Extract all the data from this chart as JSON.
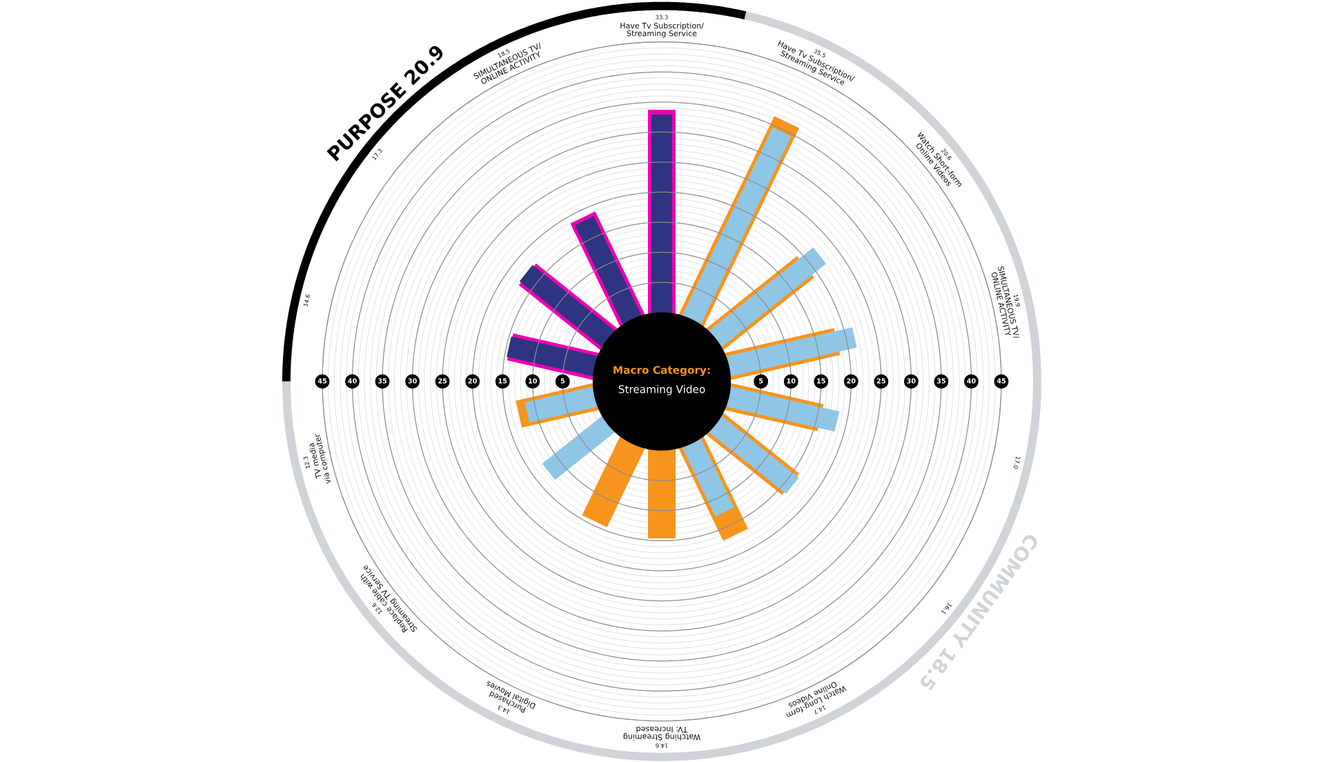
{
  "chart_data": {
    "type": "radar",
    "title": "Macro Category:",
    "subtitle": "Streaming Video",
    "categories": [
      "33.3\nHave Tv Subscription/\nStreaming Service",
      "35.5\nHave Tv Subscription/\nStreaming Service",
      "20.6\nWatch Short-form\nOnline Videos",
      "19.9\nSIMULTANEOUS TV/\nONLINE ACTIVITY",
      "17.0",
      "16.1",
      "14.7\nWatch Long-form\nOnline Videos",
      "14.6\nWatching Streaming\nTV: Increased",
      "14.3\nPurchased\nDigital Movies",
      "12.6\nReplace cable with\nStreaming TV Service",
      "12.3\nTV media\nvia computer",
      "14.6",
      "17.3",
      "18.5\nSIMULTANEOUS TV/\nONLINE ACTIVITY"
    ],
    "series": [
      {
        "type": "bar",
        "color": "#ec00b4",
        "values": [
          33.7,
          null,
          null,
          null,
          null,
          null,
          null,
          null,
          null,
          null,
          null,
          14.4,
          17.1,
          18.8
        ]
      },
      {
        "type": "bar",
        "color": "#2f3480",
        "values": [
          32.9,
          null,
          null,
          null,
          null,
          null,
          null,
          null,
          null,
          null,
          null,
          14.6,
          17.4,
          18.2
        ]
      },
      {
        "type": "bar",
        "color": "#f7941d",
        "values": [
          null,
          36.4,
          19.1,
          18.4,
          15.6,
          15.9,
          16.8,
          14.6,
          14.3,
          null,
          12.9,
          null,
          null,
          null
        ]
      },
      {
        "type": "bar",
        "color": "#8fc6e5",
        "values": [
          null,
          34.6,
          22.1,
          21.4,
          18.4,
          16.3,
          12.6,
          null,
          null,
          12.6,
          11.5,
          null,
          null,
          null
        ]
      }
    ],
    "ylim": [
      -11.5,
      45
    ],
    "yticks": [
      5,
      10,
      15,
      20,
      25,
      30,
      35,
      40,
      45,
      5,
      10,
      15,
      20,
      25,
      30,
      35,
      40,
      45
    ],
    "grid": true,
    "annotations": [
      "PURPOSE 20.9",
      "COMMUNITY 18.5"
    ]
  }
}
